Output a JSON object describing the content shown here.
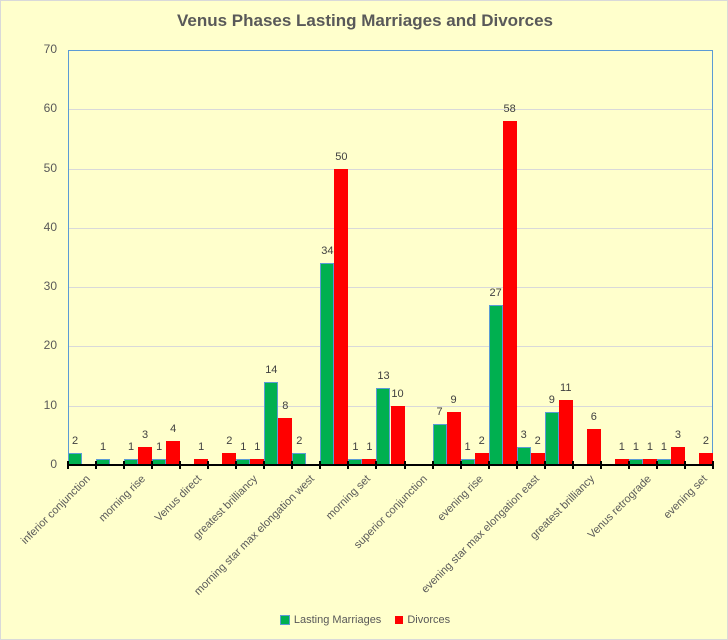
{
  "chart_data": {
    "type": "bar",
    "title": "Venus Phases Lasting Marriages and Divorces",
    "xlabel": "",
    "ylabel": "",
    "ylim": [
      0,
      70
    ],
    "yticks": [
      0,
      10,
      20,
      30,
      40,
      50,
      60,
      70
    ],
    "grid": true,
    "legend_position": "bottom",
    "categories": [
      "inferior conjunction",
      "",
      "morning rise",
      "",
      "Venus direct",
      "",
      "greatest brilliancy",
      "",
      "morning star max elongation west",
      "",
      "morning set",
      "",
      "superior conjunction",
      "",
      "evening rise",
      "",
      "evening star max elongation east",
      "",
      "greatest brilliancy",
      "",
      "Venus retrograde",
      "",
      "evening set"
    ],
    "series": [
      {
        "name": "Lasting Marriages",
        "color": "#00B050",
        "values": [
          2,
          1,
          1,
          1,
          0,
          0,
          1,
          14,
          2,
          34,
          1,
          13,
          0,
          7,
          1,
          27,
          3,
          9,
          0,
          0,
          1,
          1,
          0
        ]
      },
      {
        "name": "Divorces",
        "color": "#FF0000",
        "values": [
          0,
          0,
          3,
          4,
          1,
          2,
          1,
          8,
          0,
          50,
          1,
          10,
          0,
          9,
          2,
          58,
          2,
          11,
          6,
          1,
          1,
          3,
          2
        ]
      }
    ]
  },
  "legend": {
    "items": [
      {
        "label": "Lasting Marriages",
        "color": "#00B050"
      },
      {
        "label": "Divorces",
        "color": "#FF0000"
      }
    ]
  }
}
